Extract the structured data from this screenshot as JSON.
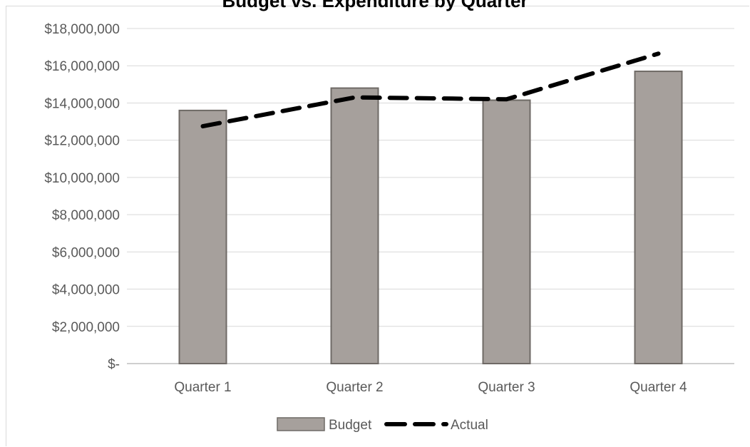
{
  "chart_data": {
    "type": "bar",
    "title": "Budget vs. Expenditure by Quarter",
    "categories": [
      "Quarter 1",
      "Quarter 2",
      "Quarter 3",
      "Quarter 4"
    ],
    "series": [
      {
        "name": "Budget",
        "type": "bar",
        "color": "#a6a09c",
        "values": [
          13600000,
          14800000,
          14150000,
          15700000
        ]
      },
      {
        "name": "Actual",
        "type": "line",
        "style": "dashed",
        "color": "#000000",
        "values": [
          12750000,
          14300000,
          14200000,
          16650000
        ]
      }
    ],
    "ylim": [
      0,
      18000000
    ],
    "yticks": [
      "$-",
      "$2,000,000",
      "$4,000,000",
      "$6,000,000",
      "$8,000,000",
      "$10,000,000",
      "$12,000,000",
      "$14,000,000",
      "$16,000,000",
      "$18,000,000"
    ],
    "xlabel": "",
    "ylabel": "",
    "grid": true,
    "legend": "bottom"
  }
}
